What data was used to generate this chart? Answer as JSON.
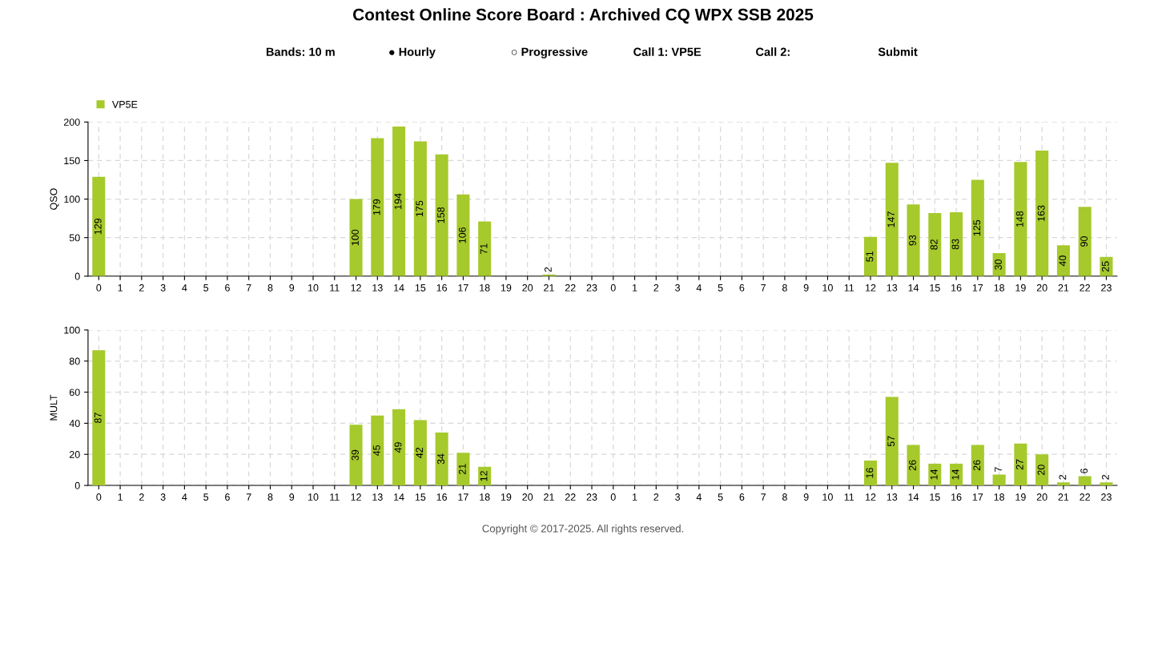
{
  "chart_data": [
    {
      "type": "bar",
      "title": "Contest Online Score Board : Archived CQ WPX SSB 2025",
      "annotations": [
        "Bands: 10 m",
        "● Hourly",
        "○ Progressive",
        "Call 1: VP5E",
        "Call 2:",
        "Submit"
      ],
      "categories": [
        "0",
        "1",
        "2",
        "3",
        "4",
        "5",
        "6",
        "7",
        "8",
        "9",
        "10",
        "11",
        "12",
        "13",
        "14",
        "15",
        "16",
        "17",
        "18",
        "19",
        "20",
        "21",
        "22",
        "23",
        "0",
        "1",
        "2",
        "3",
        "4",
        "5",
        "6",
        "7",
        "8",
        "9",
        "10",
        "11",
        "12",
        "13",
        "14",
        "15",
        "16",
        "17",
        "18",
        "19",
        "20",
        "21",
        "22",
        "23"
      ],
      "ylabel": "QSO",
      "series": [
        {
          "name": "VP5E",
          "color": "#a6c92c",
          "values": [
            129,
            0,
            0,
            0,
            0,
            0,
            0,
            0,
            0,
            0,
            0,
            0,
            100,
            179,
            194,
            175,
            158,
            106,
            71,
            0,
            0,
            2,
            0,
            0,
            0,
            0,
            0,
            0,
            0,
            0,
            0,
            0,
            0,
            0,
            0,
            0,
            51,
            147,
            93,
            82,
            83,
            125,
            30,
            148,
            163,
            40,
            90,
            25
          ],
          "value_labels": [
            "129",
            null,
            null,
            null,
            null,
            null,
            null,
            null,
            null,
            null,
            null,
            null,
            "100",
            "179",
            "194",
            "175",
            "158",
            "106",
            "71",
            null,
            null,
            "2",
            null,
            null,
            null,
            null,
            null,
            null,
            null,
            null,
            null,
            null,
            null,
            null,
            null,
            null,
            "51",
            "147",
            "93",
            "82",
            "83",
            "125",
            "30",
            "148",
            "163",
            "40",
            "90",
            "25"
          ]
        }
      ],
      "ylim": [
        0,
        200
      ],
      "yticks": [
        0,
        50,
        100,
        150,
        200
      ],
      "grid": true,
      "legend": "top left"
    },
    {
      "type": "bar",
      "annotations": [
        "Copyright © 2017-2025. All rights reserved."
      ],
      "categories": [
        "0",
        "1",
        "2",
        "3",
        "4",
        "5",
        "6",
        "7",
        "8",
        "9",
        "10",
        "11",
        "12",
        "13",
        "14",
        "15",
        "16",
        "17",
        "18",
        "19",
        "20",
        "21",
        "22",
        "23",
        "0",
        "1",
        "2",
        "3",
        "4",
        "5",
        "6",
        "7",
        "8",
        "9",
        "10",
        "11",
        "12",
        "13",
        "14",
        "15",
        "16",
        "17",
        "18",
        "19",
        "20",
        "21",
        "22",
        "23"
      ],
      "ylabel": "MULT",
      "series": [
        {
          "color": "#a6c92c",
          "values": [
            87,
            0,
            0,
            0,
            0,
            0,
            0,
            0,
            0,
            0,
            0,
            0,
            39,
            45,
            49,
            42,
            34,
            21,
            12,
            0,
            0,
            0,
            0,
            0,
            0,
            0,
            0,
            0,
            0,
            0,
            0,
            0,
            0,
            0,
            0,
            0,
            16,
            57,
            26,
            14,
            14,
            26,
            7,
            27,
            20,
            2,
            6,
            2
          ],
          "value_labels": [
            "87",
            null,
            null,
            null,
            null,
            null,
            null,
            null,
            null,
            null,
            null,
            null,
            "39",
            "45",
            "49",
            "42",
            "34",
            "21",
            "12",
            null,
            null,
            null,
            null,
            null,
            null,
            null,
            null,
            null,
            null,
            null,
            null,
            null,
            null,
            null,
            null,
            null,
            "16",
            "57",
            "26",
            "14",
            "14",
            "26",
            "7",
            "27",
            "20",
            "2",
            "6",
            "2"
          ]
        }
      ],
      "ylim": [
        0,
        100
      ],
      "yticks": [
        0,
        20,
        40,
        60,
        80,
        100
      ],
      "grid": true,
      "legend": false
    }
  ]
}
